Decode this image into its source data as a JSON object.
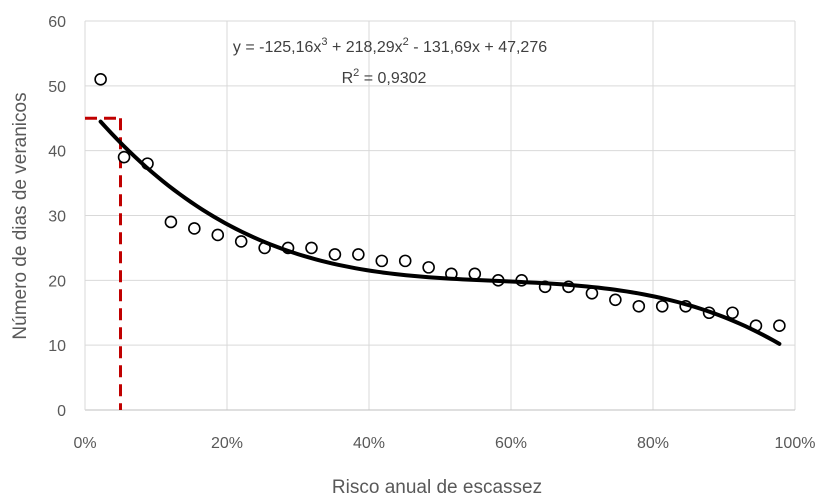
{
  "chart_data": {
    "type": "scatter",
    "title": "",
    "xlabel": "Risco anual de escassez",
    "ylabel": "Número de dias de veranicos",
    "xlim": [
      0,
      1
    ],
    "ylim": [
      0,
      60
    ],
    "x_ticks": [
      "0%",
      "20%",
      "40%",
      "60%",
      "80%",
      "100%"
    ],
    "y_ticks": [
      "0",
      "10",
      "20",
      "30",
      "40",
      "50",
      "60"
    ],
    "grid": true,
    "legend": "none",
    "series": [
      {
        "x": [
          0.022,
          0.055,
          0.088,
          0.121,
          0.154,
          0.187,
          0.22,
          0.253,
          0.286,
          0.319,
          0.352,
          0.385,
          0.418,
          0.451,
          0.484,
          0.516,
          0.549,
          0.582,
          0.615,
          0.648,
          0.681,
          0.714,
          0.747,
          0.78,
          0.813,
          0.846,
          0.879,
          0.912,
          0.945,
          0.978
        ],
        "y": [
          51,
          39,
          38,
          29,
          28,
          27,
          26,
          25,
          25,
          25,
          24,
          24,
          23,
          23,
          22,
          21,
          21,
          20,
          20,
          19,
          19,
          18,
          17,
          16,
          16,
          16,
          15,
          15,
          13,
          13
        ]
      }
    ],
    "trendline": {
      "type": "polynomial",
      "coefficients": [
        -125.16,
        218.29,
        -131.69,
        47.276
      ],
      "x_range": [
        0.022,
        0.978
      ],
      "color": "#000000"
    },
    "reference_lines": [
      {
        "x": 0.05,
        "y": 45,
        "color": "#c00000",
        "style": "dashed"
      }
    ],
    "equation_label": {
      "prefix": "y = -125,16x",
      "exp1": "3",
      "mid1": " + 218,29x",
      "exp2": "2",
      "suffix": "  - 131,69x  + 47,276"
    },
    "r2_label": {
      "prefix": "R",
      "exp": "2",
      "suffix": " = 0,9302"
    }
  }
}
